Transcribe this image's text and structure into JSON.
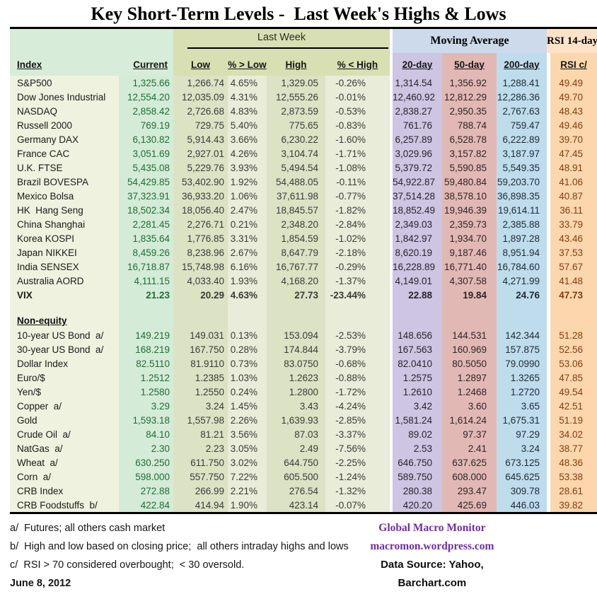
{
  "title": "Key Short-Term Levels -  Last Week's Highs & Lows",
  "group_headers": {
    "last_week": "Last Week",
    "moving_average": "Moving Average",
    "rsi_14day": "RSI 14-day"
  },
  "columns": {
    "index": "Index",
    "current": "Current",
    "low": "Low",
    "pct_above_low": "% > Low",
    "high": "High",
    "pct_below_high": "% < High",
    "ma_20day": "20-day",
    "ma_50day": "50-day",
    "ma_200day": "200-day",
    "rsi": "RSI c/"
  },
  "table": {
    "sections": [
      {
        "label": "",
        "rows": [
          {
            "label": "S&P500",
            "current": "1,325.66",
            "low": "1,266.74",
            "pct_low": "4.65%",
            "high": "1,329.05",
            "pct_high": "-0.26%",
            "d20": "1,314.54",
            "d50": "1,356.92",
            "d200": "1,288.41",
            "rsi": "49.49",
            "bold": false
          },
          {
            "label": "Dow Jones Industrial",
            "current": "12,554.20",
            "low": "12,035.09",
            "pct_low": "4.31%",
            "high": "12,555.26",
            "pct_high": "-0.01%",
            "d20": "12,460.92",
            "d50": "12,812.29",
            "d200": "12,286.36",
            "rsi": "49.70",
            "bold": false
          },
          {
            "label": "NASDAQ",
            "current": "2,858.42",
            "low": "2,726.68",
            "pct_low": "4.83%",
            "high": "2,873.59",
            "pct_high": "-0.53%",
            "d20": "2,838.27",
            "d50": "2,950.35",
            "d200": "2,767.63",
            "rsi": "48.43",
            "bold": false
          },
          {
            "label": "Russell 2000",
            "current": "769.19",
            "low": "729.75",
            "pct_low": "5.40%",
            "high": "775.65",
            "pct_high": "-0.83%",
            "d20": "761.76",
            "d50": "788.74",
            "d200": "759.47",
            "rsi": "49.46",
            "bold": false
          },
          {
            "label": "Germany DAX",
            "current": "6,130.82",
            "low": "5,914.43",
            "pct_low": "3.66%",
            "high": "6,230.22",
            "pct_high": "-1.60%",
            "d20": "6,257.89",
            "d50": "6,528.78",
            "d200": "6,222.89",
            "rsi": "39.70",
            "bold": false
          },
          {
            "label": "France CAC",
            "current": "3,051.69",
            "low": "2,927.01",
            "pct_low": "4.26%",
            "high": "3,104.74",
            "pct_high": "-1.71%",
            "d20": "3,029.96",
            "d50": "3,157.82",
            "d200": "3,187.97",
            "rsi": "47.45",
            "bold": false
          },
          {
            "label": "U.K. FTSE",
            "current": "5,435.08",
            "low": "5,229.76",
            "pct_low": "3.93%",
            "high": "5,494.54",
            "pct_high": "-1.08%",
            "d20": "5,379.72",
            "d50": "5,590.85",
            "d200": "5,549.35",
            "rsi": "48.91",
            "bold": false
          },
          {
            "label": "Brazil BOVESPA",
            "current": "54,429.85",
            "low": "53,402.90",
            "pct_low": "1.92%",
            "high": "54,488.05",
            "pct_high": "-0.11%",
            "d20": "54,922.87",
            "d50": "59,480.84",
            "d200": "59,203.70",
            "rsi": "41.06",
            "bold": false
          },
          {
            "label": "Mexico Bolsa",
            "current": "37,323.91",
            "low": "36,933.20",
            "pct_low": "1.06%",
            "high": "37,611.98",
            "pct_high": "-0.77%",
            "d20": "37,514.28",
            "d50": "38,578.10",
            "d200": "36,898.35",
            "rsi": "40.87",
            "bold": false
          },
          {
            "label": "HK  Hang Seng",
            "current": "18,502.34",
            "low": "18,056.40",
            "pct_low": "2.47%",
            "high": "18,845.57",
            "pct_high": "-1.82%",
            "d20": "18,852.49",
            "d50": "19,946.39",
            "d200": "19,614.11",
            "rsi": "36.11",
            "bold": false
          },
          {
            "label": "China Shanghai",
            "current": "2,281.45",
            "low": "2,276.71",
            "pct_low": "0.21%",
            "high": "2,348.20",
            "pct_high": "-2.84%",
            "d20": "2,349.03",
            "d50": "2,359.73",
            "d200": "2,385.88",
            "rsi": "33.79",
            "bold": false
          },
          {
            "label": "Korea KOSPI",
            "current": "1,835.64",
            "low": "1,776.85",
            "pct_low": "3.31%",
            "high": "1,854.59",
            "pct_high": "-1.02%",
            "d20": "1,842.97",
            "d50": "1,934.70",
            "d200": "1,897.28",
            "rsi": "43.46",
            "bold": false
          },
          {
            "label": "Japan NIKKEI",
            "current": "8,459.26",
            "low": "8,238.96",
            "pct_low": "2.67%",
            "high": "8,647.79",
            "pct_high": "-2.18%",
            "d20": "8,620.19",
            "d50": "9,187.46",
            "d200": "8,951.94",
            "rsi": "37.53",
            "bold": false
          },
          {
            "label": "India SENSEX",
            "current": "16,718.87",
            "low": "15,748.98",
            "pct_low": "6.16%",
            "high": "16,767.77",
            "pct_high": "-0.29%",
            "d20": "16,228.89",
            "d50": "16,771.40",
            "d200": "16,784.60",
            "rsi": "57.67",
            "bold": false
          },
          {
            "label": "Australia AORD",
            "current": "4,111.15",
            "low": "4,033.40",
            "pct_low": "1.93%",
            "high": "4,168.20",
            "pct_high": "-1.37%",
            "d20": "4,149.01",
            "d50": "4,307.58",
            "d200": "4,271.99",
            "rsi": "41.48",
            "bold": false
          },
          {
            "label": "VIX",
            "current": "21.23",
            "low": "20.29",
            "pct_low": "4.63%",
            "high": "27.73",
            "pct_high": "-23.44%",
            "d20": "22.88",
            "d50": "19.84",
            "d200": "24.76",
            "rsi": "47.73",
            "bold": true
          }
        ]
      },
      {
        "label": "Non-equity",
        "rows": [
          {
            "label": "10-year US Bond  a/",
            "current": "149.219",
            "low": "149.031",
            "pct_low": "0.13%",
            "high": "153.094",
            "pct_high": "-2.53%",
            "d20": "148.656",
            "d50": "144.531",
            "d200": "142.344",
            "rsi": "51.28",
            "bold": false
          },
          {
            "label": "30-year US Bond  a/",
            "current": "168.219",
            "low": "167.750",
            "pct_low": "0.28%",
            "high": "174.844",
            "pct_high": "-3.79%",
            "d20": "167.563",
            "d50": "160.969",
            "d200": "157.875",
            "rsi": "52.56",
            "bold": false
          },
          {
            "label": "Dollar Index",
            "current": "82.5110",
            "low": "81.9110",
            "pct_low": "0.73%",
            "high": "83.0750",
            "pct_high": "-0.68%",
            "d20": "82.0410",
            "d50": "80.5050",
            "d200": "79.0990",
            "rsi": "53.06",
            "bold": false
          },
          {
            "label": "Euro/$",
            "current": "1.2512",
            "low": "1.2385",
            "pct_low": "1.03%",
            "high": "1.2623",
            "pct_high": "-0.88%",
            "d20": "1.2575",
            "d50": "1.2897",
            "d200": "1.3265",
            "rsi": "47.85",
            "bold": false
          },
          {
            "label": "Yen/$",
            "current": "1.2580",
            "low": "1.2550",
            "pct_low": "0.24%",
            "high": "1.2800",
            "pct_high": "-1.72%",
            "d20": "1.2610",
            "d50": "1.2468",
            "d200": "1.2720",
            "rsi": "49.54",
            "bold": false
          },
          {
            "label": "Copper  a/",
            "current": "3.29",
            "low": "3.24",
            "pct_low": "1.45%",
            "high": "3.43",
            "pct_high": "-4.24%",
            "d20": "3.42",
            "d50": "3.60",
            "d200": "3.65",
            "rsi": "42.51",
            "bold": false
          },
          {
            "label": "Gold",
            "current": "1,593.18",
            "low": "1,557.98",
            "pct_low": "2.26%",
            "high": "1,639.93",
            "pct_high": "-2.85%",
            "d20": "1,581.24",
            "d50": "1,614.24",
            "d200": "1,675.31",
            "rsi": "51.19",
            "bold": false
          },
          {
            "label": "Crude Oil  a/",
            "current": "84.10",
            "low": "81.21",
            "pct_low": "3.56%",
            "high": "87.03",
            "pct_high": "-3.37%",
            "d20": "89.02",
            "d50": "97.37",
            "d200": "97.29",
            "rsi": "34.02",
            "bold": false
          },
          {
            "label": "NatGas  a/",
            "current": "2.30",
            "low": "2.23",
            "pct_low": "3.05%",
            "high": "2.49",
            "pct_high": "-7.56%",
            "d20": "2.53",
            "d50": "2.41",
            "d200": "3.24",
            "rsi": "38.77",
            "bold": false
          },
          {
            "label": "Wheat  a/",
            "current": "630.250",
            "low": "611.750",
            "pct_low": "3.02%",
            "high": "644.750",
            "pct_high": "-2.25%",
            "d20": "646.750",
            "d50": "637.625",
            "d200": "673.125",
            "rsi": "48.36",
            "bold": false
          },
          {
            "label": "Corn  a/",
            "current": "598.000",
            "low": "557.750",
            "pct_low": "7.22%",
            "high": "605.500",
            "pct_high": "-1.24%",
            "d20": "589.750",
            "d50": "608.000",
            "d200": "645.625",
            "rsi": "53.38",
            "bold": false
          },
          {
            "label": "CRB Index",
            "current": "272.88",
            "low": "266.99",
            "pct_low": "2.21%",
            "high": "276.54",
            "pct_high": "-1.32%",
            "d20": "280.38",
            "d50": "293.47",
            "d200": "309.78",
            "rsi": "28.61",
            "bold": false
          },
          {
            "label": "CRB Foodstuffs  b/",
            "current": "422.84",
            "low": "414.94",
            "pct_low": "1.90%",
            "high": "423.14",
            "pct_high": "-0.07%",
            "d20": "420.20",
            "d50": "425.69",
            "d200": "446.03",
            "rsi": "39.82",
            "bold": false
          }
        ]
      }
    ]
  },
  "footnotes": [
    "a/  Futures; all others cash market",
    "b/  High and low based on closing price;  all others intraday highs and lows",
    "c/  RSI > 70 considered overbought;  < 30 oversold."
  ],
  "date": "June 8, 2012",
  "credits": {
    "source_name": "Global Macro Monitor",
    "source_url": "macromon.wordpress.com",
    "data_source": "Data Source: Yahoo, Barchart.com"
  },
  "colors": {
    "accent_green_text": "#1f6d35",
    "rsi_value_text": "#843c0c",
    "credit_purple": "#7030a0",
    "index_col_bg": "#eef2df",
    "current_col_bg": "#d4ebd7",
    "last_week_band_bg": "#d8dfb2",
    "low_high_col_bg": "#dce2c4",
    "pct_col_bg": "#e9ecd8",
    "moving_avg_band_bg": "#ccdaeb",
    "ma20_col_bg": "#cdc5e1",
    "ma50_col_bg": "#e2b8b5",
    "ma200_col_bg": "#bedcec",
    "rsi_band_bg": "#fde2c8",
    "rsi_col_bg": "#fcd7ae"
  }
}
